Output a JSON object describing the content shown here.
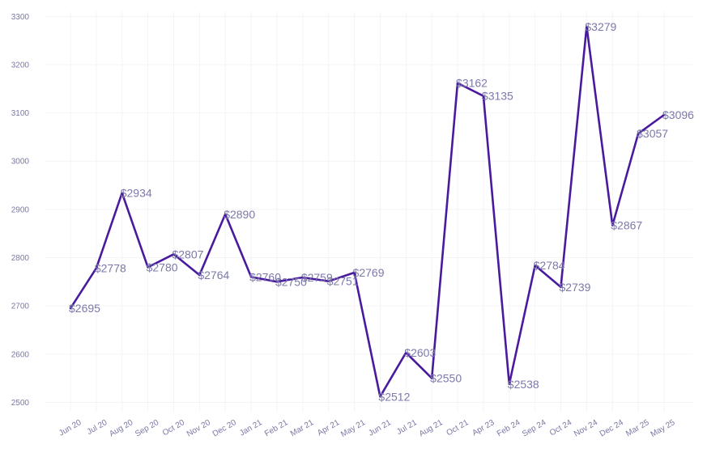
{
  "chart_data": {
    "type": "line",
    "title": "",
    "xlabel": "",
    "ylabel": "",
    "ylim": [
      2480,
      3310
    ],
    "y_ticks": [
      2500,
      2600,
      2700,
      2800,
      2900,
      3000,
      3100,
      3200,
      3300
    ],
    "grid": true,
    "line_color": "#4a1a9e",
    "label_color": "#7b79aa",
    "tick_color": "#7878a6",
    "label_prefix": "$",
    "categories": [
      "Jun 20",
      "Jul 20",
      "Aug 20",
      "Sep 20",
      "Oct 20",
      "Nov 20",
      "Dec 20",
      "Jan 21",
      "Feb 21",
      "Mar 21",
      "Apr 21",
      "May 21",
      "Jun 21",
      "Jul 21",
      "Aug 21",
      "Oct 21",
      "Apr 23",
      "Feb 24",
      "Sep 24",
      "Oct 24",
      "Nov 24",
      "Dec 24",
      "Mar 25",
      "May 25"
    ],
    "values": [
      2695,
      2778,
      2934,
      2780,
      2807,
      2764,
      2890,
      2760,
      2750,
      2759,
      2751,
      2769,
      2512,
      2603,
      2550,
      3162,
      3135,
      2538,
      2784,
      2739,
      3279,
      2867,
      3057,
      3096
    ],
    "labels": [
      "$2695",
      "$2778",
      "$2934",
      "$2780",
      "$2807",
      "$2764",
      "$2890",
      "$2760",
      "$2750",
      "$2759",
      "$2751",
      "$2769",
      "$2512",
      "$2603",
      "$2550",
      "$3162",
      "$3135",
      "$2538",
      "$2784",
      "$2739",
      "$3279",
      "$2867",
      "$3057",
      "$3096"
    ]
  }
}
